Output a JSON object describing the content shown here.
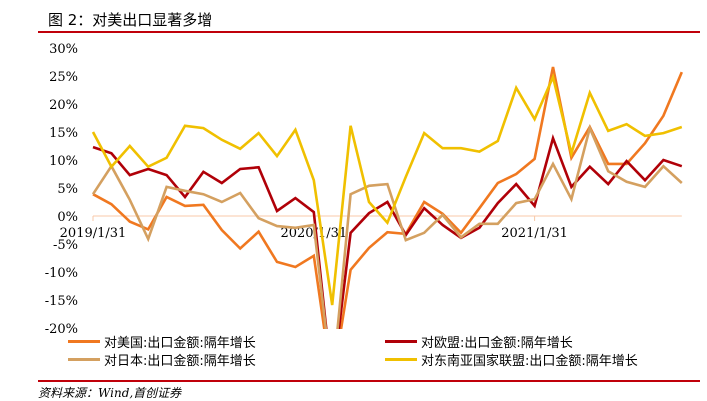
{
  "header": {
    "title": "图 2：对美出口显著多增"
  },
  "footer": {
    "source": "资料来源：Wind,首创证券"
  },
  "chart_data": {
    "type": "line",
    "title": "",
    "xlabel": "",
    "ylabel": "",
    "ylim": [
      -20,
      30
    ],
    "yticks": [
      "30%",
      "25%",
      "20%",
      "15%",
      "10%",
      "5%",
      "0%",
      "-5%",
      "-10%",
      "-15%",
      "-20%"
    ],
    "xtick_labels": [
      "2019/1/31",
      "2020/1/31",
      "2021/1/31"
    ],
    "grid": false,
    "legend_position": "bottom",
    "x": [
      "2019-01",
      "2019-02",
      "2019-03",
      "2019-04",
      "2019-05",
      "2019-06",
      "2019-07",
      "2019-08",
      "2019-09",
      "2019-10",
      "2019-11",
      "2019-12",
      "2020-01",
      "2020-02",
      "2020-03",
      "2020-04",
      "2020-05",
      "2020-06",
      "2020-07",
      "2020-08",
      "2020-09",
      "2020-10",
      "2020-11",
      "2020-12",
      "2021-01",
      "2021-02",
      "2021-03",
      "2021-04",
      "2021-05",
      "2021-06",
      "2021-07",
      "2021-08",
      "2021-09"
    ],
    "series": [
      {
        "name": "对美国:出口金额:隔年增长",
        "color": "#F07820",
        "values": [
          3.9,
          2.1,
          -1.0,
          -2.4,
          3.4,
          1.8,
          2.0,
          -2.5,
          -5.8,
          -2.8,
          -8.2,
          -9.1,
          -7.1,
          -30,
          -9.6,
          -5.7,
          -2.9,
          -3.2,
          2.5,
          0.4,
          -3.0,
          1.4,
          5.9,
          7.5,
          10.2,
          26.6,
          10.4,
          15.9,
          9.3,
          9.3,
          13.0,
          17.9,
          25.7
        ]
      },
      {
        "name": "对欧盟:出口金额:隔年增长",
        "color": "#B00008",
        "values": [
          12.3,
          11.2,
          7.3,
          8.4,
          7.3,
          3.4,
          7.9,
          5.9,
          8.4,
          8.7,
          0.9,
          3.2,
          0.7,
          -30,
          -3.0,
          0.5,
          2.5,
          -3.4,
          1.4,
          -1.6,
          -3.9,
          -2.1,
          2.3,
          5.7,
          1.8,
          13.9,
          5.2,
          8.8,
          5.7,
          9.8,
          6.4,
          10.0,
          8.9
        ]
      },
      {
        "name": "对日本:出口金额:隔年增长",
        "color": "#D4A060",
        "values": [
          3.9,
          8.9,
          2.9,
          -4.1,
          5.2,
          4.5,
          3.9,
          2.5,
          4.1,
          -0.4,
          -1.8,
          -2.1,
          -1.6,
          -30,
          3.9,
          5.4,
          5.7,
          -4.3,
          -3.0,
          0.2,
          -3.8,
          -1.4,
          -1.4,
          2.3,
          3.0,
          9.3,
          3.0,
          15.7,
          8.0,
          6.1,
          5.2,
          8.9,
          5.9
        ]
      },
      {
        "name": "对东南亚国家联盟:出口金额:隔年增长",
        "color": "#F0C000",
        "values": [
          15.0,
          8.8,
          12.5,
          8.8,
          10.4,
          16.1,
          15.7,
          13.6,
          12.0,
          14.8,
          10.7,
          15.4,
          6.4,
          -15.9,
          16.1,
          2.5,
          -1.2,
          7.0,
          14.8,
          12.1,
          12.1,
          11.5,
          13.4,
          22.9,
          17.3,
          24.8,
          11.2,
          22.0,
          15.2,
          16.4,
          14.3,
          14.8,
          15.9
        ]
      }
    ],
    "zero_line_color": "#F8C8A8"
  }
}
